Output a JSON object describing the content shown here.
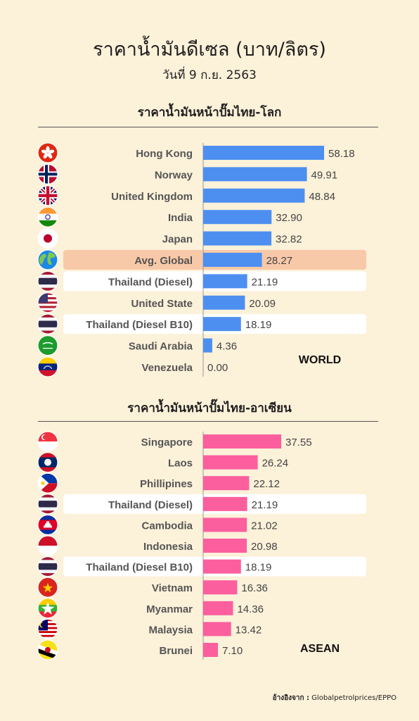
{
  "title": "ราคาน้ำมันดีเซล (บาท/ลิตร)",
  "subtitle": "วันที่ 9 ก.ย. 2563",
  "source": {
    "label": "อ้างอิงจาก :",
    "text": "Globalpetrolprices/EPPO"
  },
  "colors": {
    "background": "#fcf1d9",
    "world_bar": "#4d8ff0",
    "asean_bar": "#fb5f9e",
    "global_highlight": "#f8c9a8",
    "thailand_highlight": "#ffffff"
  },
  "chart_data": [
    {
      "type": "bar",
      "orientation": "horizontal",
      "title": "ราคาน้ำมันหน้าปั๊มไทย-โลก",
      "tag": "WORLD",
      "categories": [
        "Hong Kong",
        "Norway",
        "United Kingdom",
        "India",
        "Japan",
        "Avg. Global",
        "Thailand (Diesel)",
        "United State",
        "Thailand (Diesel B10)",
        "Saudi Arabia",
        "Venezuela"
      ],
      "values": [
        58.18,
        49.91,
        48.84,
        32.9,
        32.82,
        28.27,
        21.19,
        20.09,
        18.19,
        4.36,
        0.0
      ],
      "value_labels": [
        "58.18",
        "49.91",
        "48.84",
        "32.90",
        "32.82",
        "28.27",
        "21.19",
        "20.09",
        "18.19",
        "4.36",
        "0.00"
      ],
      "icons": [
        "hong-kong-flag-icon",
        "norway-flag-icon",
        "united-kingdom-flag-icon",
        "india-flag-icon",
        "japan-flag-icon",
        "globe-icon",
        "thailand-flag-icon",
        "united-states-flag-icon",
        "thailand-flag-icon",
        "saudi-arabia-flag-icon",
        "venezuela-flag-icon"
      ],
      "highlight": [
        "",
        "",
        "",
        "",
        "",
        "global",
        "thailand",
        "",
        "thailand",
        "",
        ""
      ]
    },
    {
      "type": "bar",
      "orientation": "horizontal",
      "title": "ราคาน้ำมันหน้าปั๊มไทย-อาเซียน",
      "tag": "ASEAN",
      "categories": [
        "Singapore",
        "Laos",
        "Phillipines",
        "Thailand (Diesel)",
        "Cambodia",
        "Indonesia",
        "Thailand (Diesel B10)",
        "Vietnam",
        "Myanmar",
        "Malaysia",
        "Brunei"
      ],
      "values": [
        37.55,
        26.24,
        22.12,
        21.19,
        21.02,
        20.98,
        18.19,
        16.36,
        14.36,
        13.42,
        7.1
      ],
      "value_labels": [
        "37.55",
        "26.24",
        "22.12",
        "21.19",
        "21.02",
        "20.98",
        "18.19",
        "16.36",
        "14.36",
        "13.42",
        "7.10"
      ],
      "icons": [
        "singapore-flag-icon",
        "laos-flag-icon",
        "philippines-flag-icon",
        "thailand-flag-icon",
        "cambodia-flag-icon",
        "indonesia-flag-icon",
        "thailand-flag-icon",
        "vietnam-flag-icon",
        "myanmar-flag-icon",
        "malaysia-flag-icon",
        "brunei-flag-icon"
      ],
      "highlight": [
        "",
        "",
        "",
        "thailand",
        "",
        "",
        "thailand",
        "",
        "",
        "",
        ""
      ]
    }
  ]
}
